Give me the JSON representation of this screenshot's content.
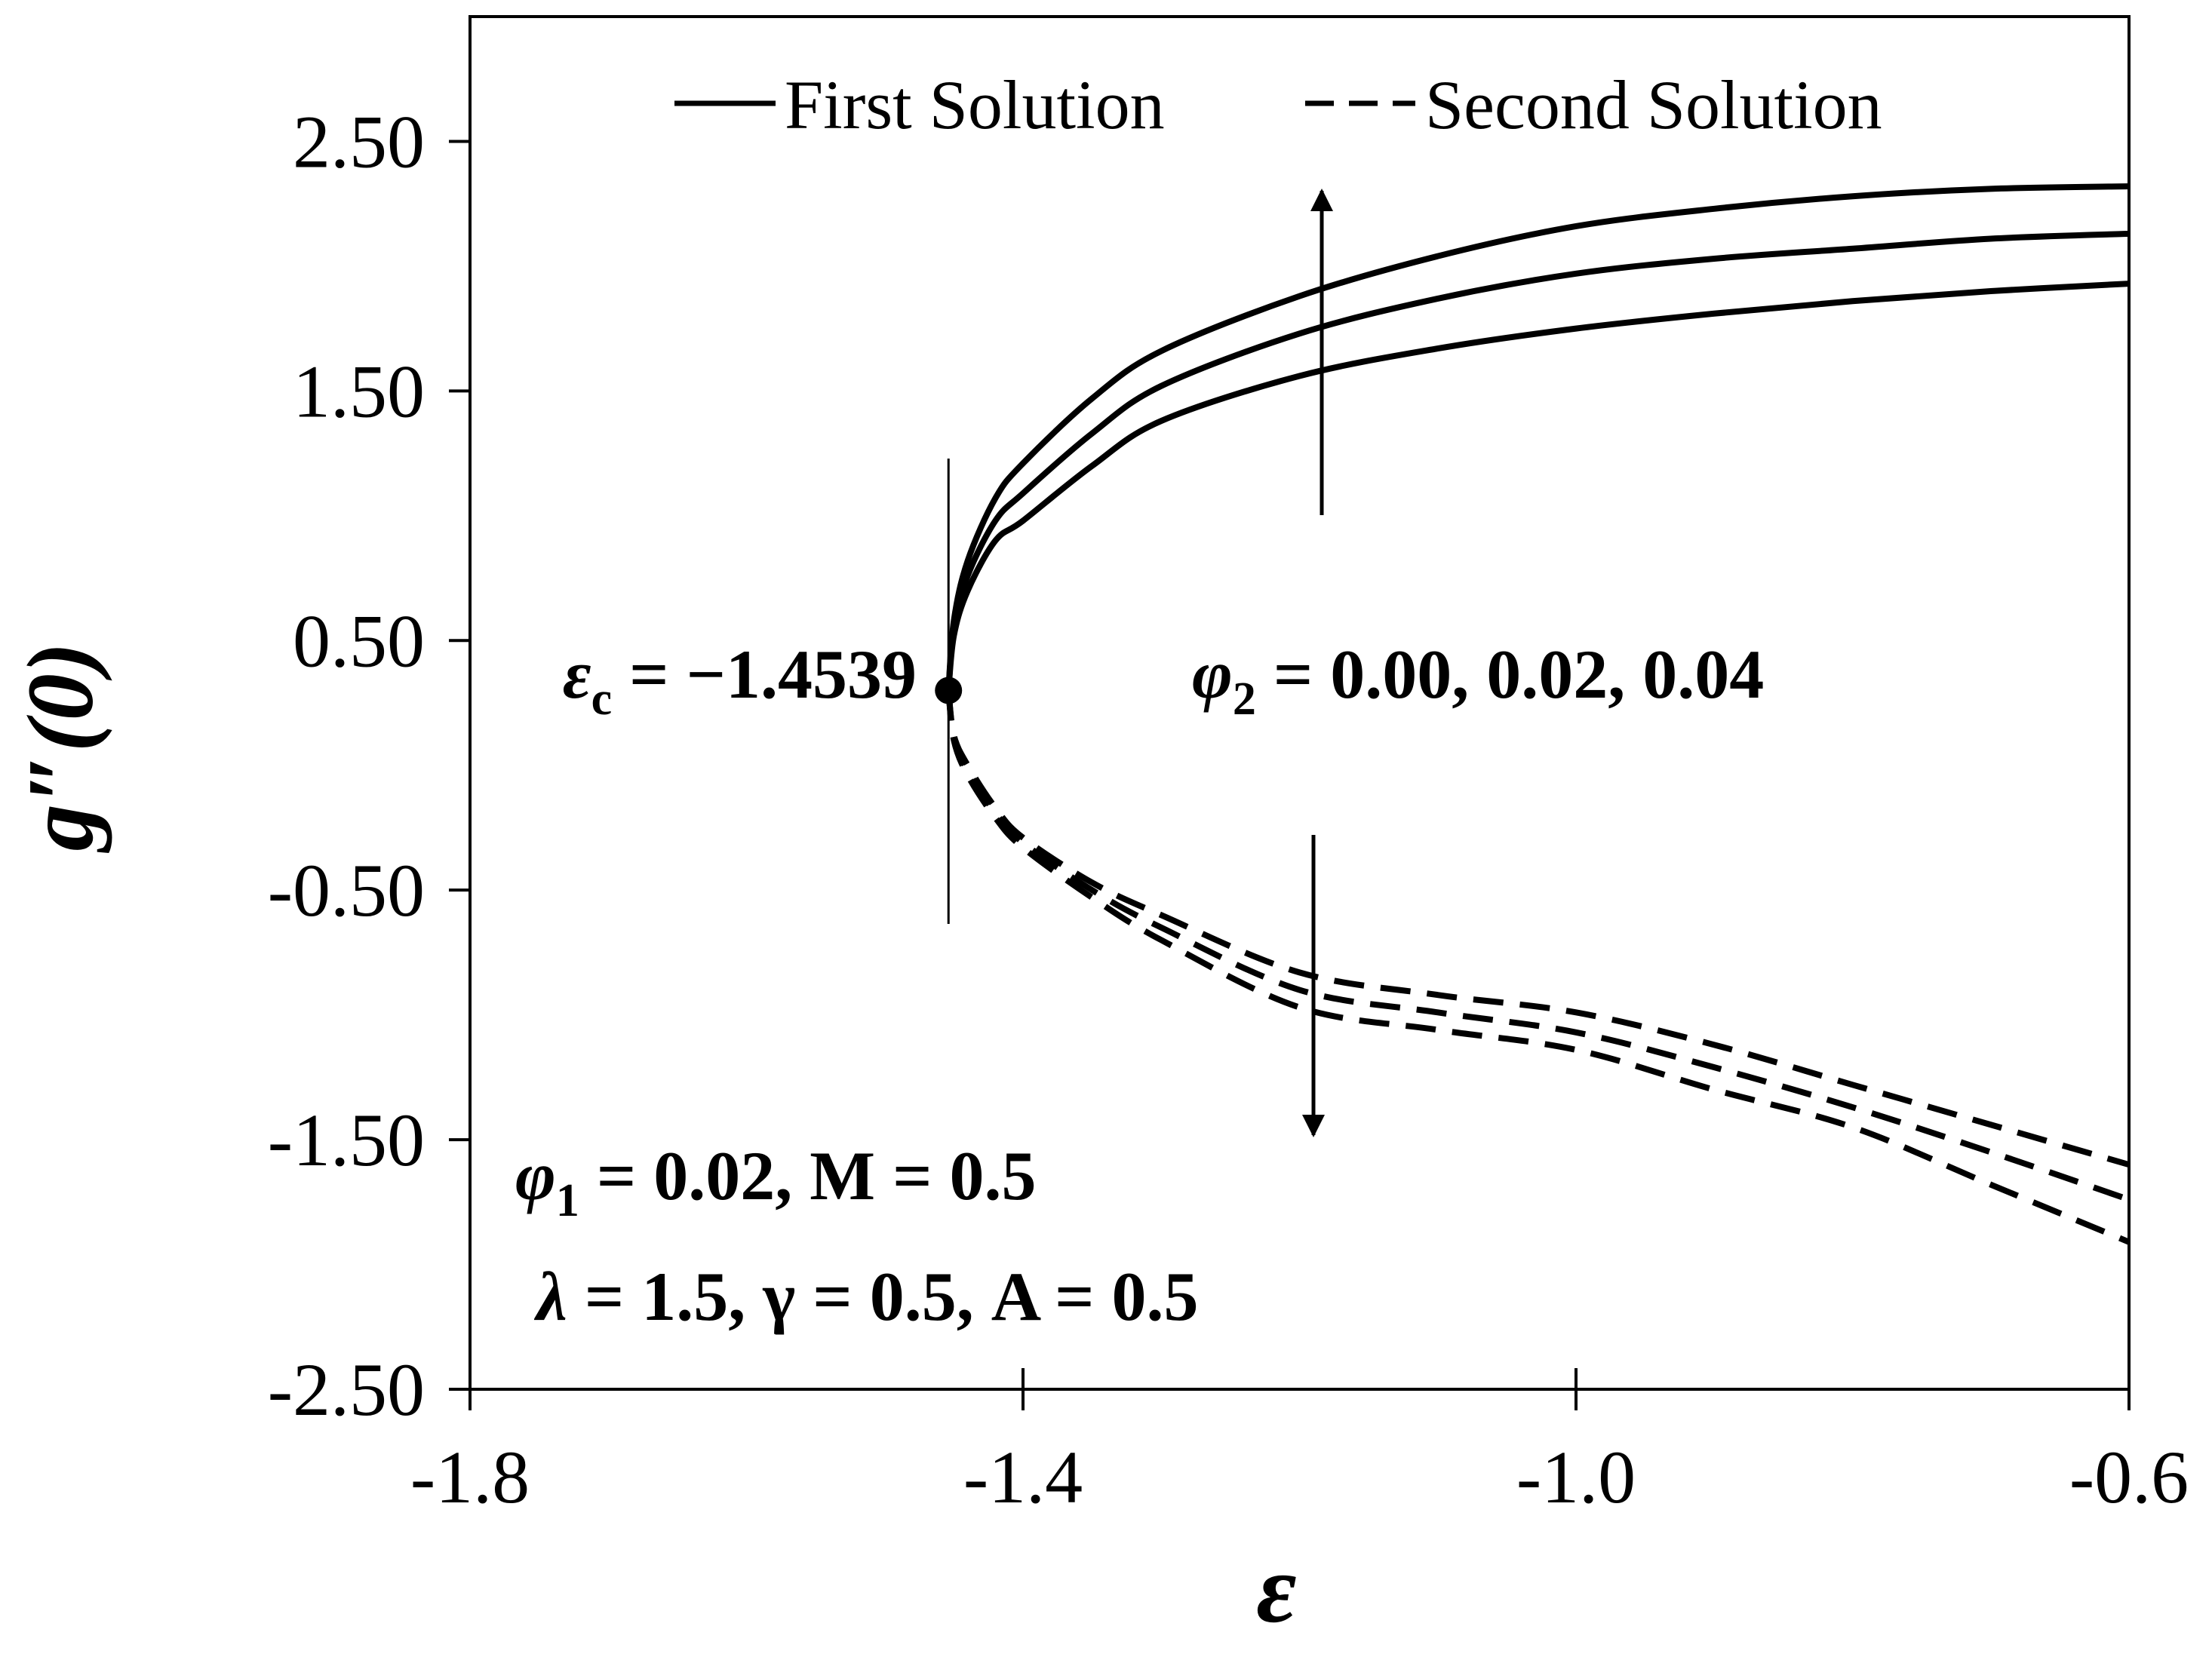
{
  "chart_data": {
    "type": "line",
    "xlabel": "ε",
    "ylabel": "g″(0)",
    "xlim": [
      -1.8,
      -0.6
    ],
    "xticks": [
      -1.8,
      -1.4,
      {
        "value": -1.0,
        "label": "-1.0"
      },
      -0.6
    ],
    "ylim": [
      -2.5,
      3.0
    ],
    "yticks": [
      {
        "value": -2.5,
        "label": "-2.50"
      },
      {
        "value": -1.5,
        "label": "-1.50"
      },
      {
        "value": -0.5,
        "label": "-0.50"
      },
      {
        "value": 0.5,
        "label": "0.50"
      },
      {
        "value": 1.5,
        "label": "1.50"
      },
      {
        "value": 2.5,
        "label": "2.50"
      }
    ],
    "x": [
      -1.4539,
      -1.45,
      -1.44,
      -1.42,
      -1.4,
      -1.35,
      -1.3,
      -1.2,
      -1.1,
      -1.0,
      -0.9,
      -0.8,
      -0.7,
      -0.6
    ],
    "groups": [
      {
        "name": "First Solution",
        "color": "#000000",
        "dashed": false,
        "lines": [
          {
            "values": [
              0.3,
              0.58,
              0.82,
              1.07,
              1.21,
              1.47,
              1.66,
              1.88,
              2.04,
              2.16,
              2.23,
              2.28,
              2.31,
              2.32
            ]
          },
          {
            "values": [
              0.3,
              0.55,
              0.76,
              0.98,
              1.09,
              1.33,
              1.52,
              1.73,
              1.87,
              1.97,
              2.03,
              2.07,
              2.11,
              2.13
            ]
          },
          {
            "values": [
              0.3,
              0.52,
              0.7,
              0.9,
              0.98,
              1.2,
              1.38,
              1.56,
              1.67,
              1.75,
              1.81,
              1.86,
              1.9,
              1.93
            ]
          }
        ]
      },
      {
        "name": "Second Solution",
        "color": "#000000",
        "dashed": true,
        "lines": [
          {
            "values": [
              0.3,
              0.12,
              0.0,
              -0.17,
              -0.29,
              -0.47,
              -0.6,
              -0.83,
              -0.92,
              -0.99,
              -1.12,
              -1.28,
              -1.44,
              -1.6
            ]
          },
          {
            "values": [
              0.3,
              0.11,
              -0.02,
              -0.19,
              -0.31,
              -0.5,
              -0.65,
              -0.9,
              -0.99,
              -1.07,
              -1.21,
              -1.37,
              -1.55,
              -1.74
            ]
          },
          {
            "values": [
              0.3,
              0.1,
              -0.04,
              -0.21,
              -0.33,
              -0.53,
              -0.7,
              -0.97,
              -1.06,
              -1.14,
              -1.3,
              -1.45,
              -1.68,
              -1.91
            ]
          }
        ]
      }
    ],
    "annotations": [
      {
        "symbol": "ε",
        "sub": "c",
        "rest": " = −1.4539"
      },
      {
        "symbol": "φ",
        "sub": "2",
        "rest": " = 0.00, 0.02, 0.04"
      },
      {
        "symbol": "φ",
        "sub": "1",
        "rest": " = 0.02, M = 0.5"
      },
      {
        "symbol": "λ",
        "rest": " = 1.5, γ = 0.5, A = 0.5"
      }
    ]
  }
}
